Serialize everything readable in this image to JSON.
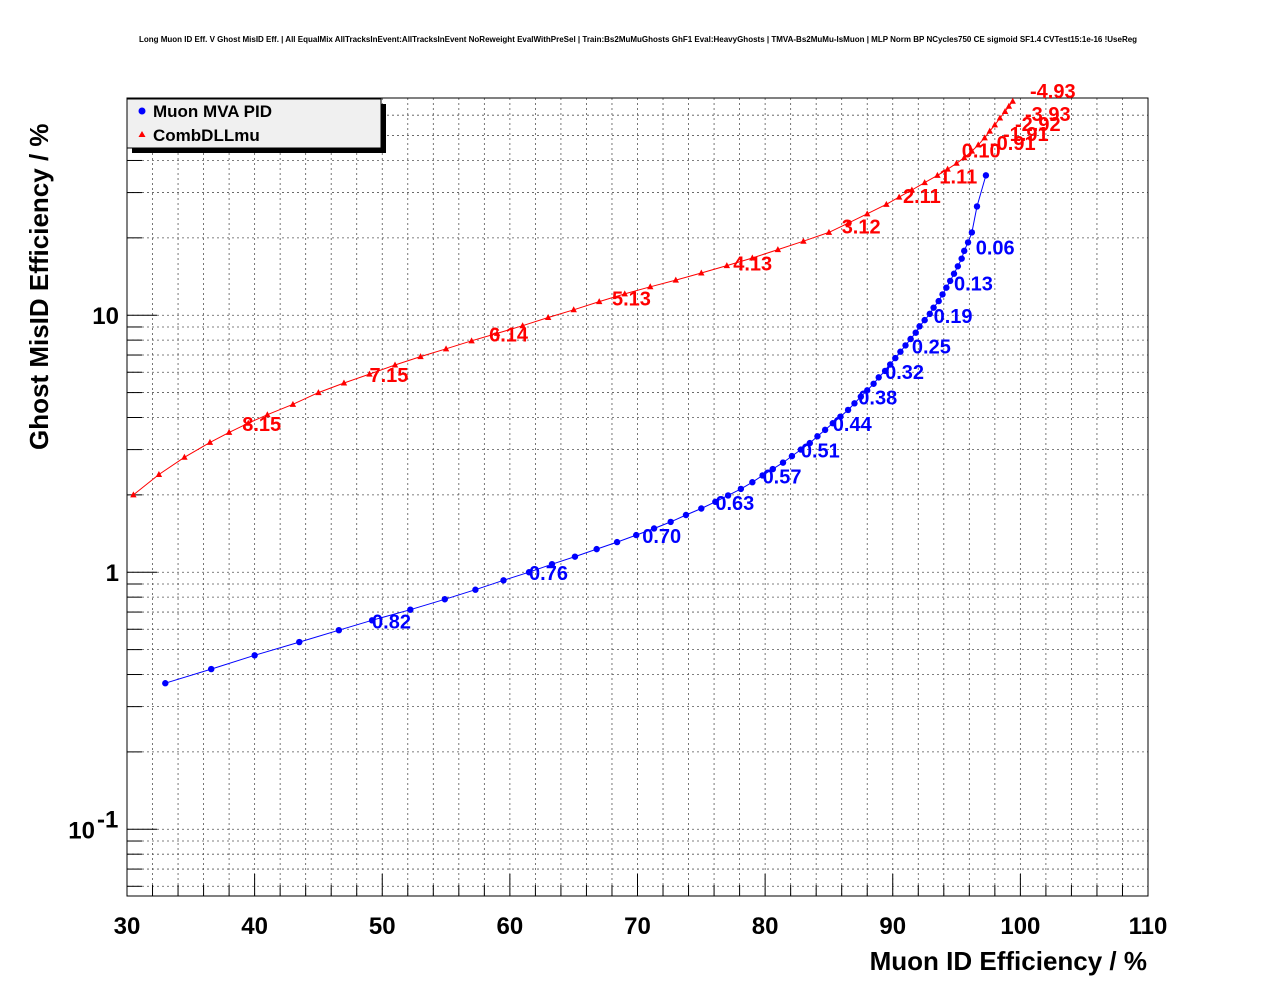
{
  "title": "Long Muon ID Eff. V Ghost MisID Eff. | All EqualMix AllTracksInEvent:AllTracksInEvent NoReweight EvalWithPreSel | Train:Bs2MuMuGhosts GhF1 Eval:HeavyGhosts | TMVA-Bs2MuMu-IsMuon | MLP Norm BP NCycles750 CE sigmoid SF1.4 CVTest15:1e-16 !UseReg",
  "chart_data": {
    "type": "scatter",
    "xlabel": "Muon ID Efficiency / %",
    "ylabel": "Ghost MisID Efficiency / %",
    "xlim": [
      30,
      110
    ],
    "ylim": [
      0.055,
      70
    ],
    "yscale": "log",
    "grid": true,
    "legend_position": "top-left",
    "x_ticks": [
      {
        "value": 30,
        "label": "30"
      },
      {
        "value": 40,
        "label": "40"
      },
      {
        "value": 50,
        "label": "50"
      },
      {
        "value": 60,
        "label": "60"
      },
      {
        "value": 70,
        "label": "70"
      },
      {
        "value": 80,
        "label": "80"
      },
      {
        "value": 90,
        "label": "90"
      },
      {
        "value": 100,
        "label": "100"
      },
      {
        "value": 110,
        "label": "110"
      }
    ],
    "y_ticks": [
      {
        "value": 0.1,
        "base": "10",
        "exp": "-1"
      },
      {
        "value": 1,
        "base": "1",
        "exp": ""
      },
      {
        "value": 10,
        "base": "10",
        "exp": ""
      }
    ],
    "series": [
      {
        "name": "Muon MVA PID",
        "color": "#0000ff",
        "marker": "circle",
        "x": [
          33.0,
          36.6,
          40.0,
          43.5,
          46.6,
          49.2,
          52.2,
          54.9,
          57.3,
          59.5,
          61.5,
          63.3,
          65.1,
          66.8,
          68.4,
          69.9,
          71.3,
          72.6,
          73.8,
          75.0,
          76.1,
          77.1,
          78.1,
          79.0,
          79.8,
          80.6,
          81.4,
          82.1,
          82.8,
          83.5,
          84.1,
          84.7,
          85.3,
          85.9,
          86.5,
          87.0,
          87.5,
          88.0,
          88.5,
          88.9,
          89.4,
          89.8,
          90.2,
          90.6,
          91.0,
          91.4,
          91.8,
          92.1,
          92.5,
          92.9,
          93.2,
          93.6,
          93.9,
          94.2,
          94.5,
          94.8,
          95.1,
          95.4,
          95.6,
          95.9,
          96.2,
          96.6,
          97.3
        ],
        "y": [
          0.37,
          0.42,
          0.475,
          0.535,
          0.595,
          0.65,
          0.715,
          0.785,
          0.855,
          0.93,
          1.0,
          1.075,
          1.15,
          1.23,
          1.31,
          1.395,
          1.48,
          1.57,
          1.67,
          1.77,
          1.88,
          1.99,
          2.11,
          2.24,
          2.38,
          2.52,
          2.67,
          2.83,
          3.0,
          3.18,
          3.38,
          3.58,
          3.8,
          4.03,
          4.28,
          4.54,
          4.82,
          5.1,
          5.41,
          5.73,
          6.07,
          6.43,
          6.81,
          7.21,
          7.63,
          8.08,
          8.55,
          9.05,
          9.57,
          10.12,
          10.7,
          11.35,
          12.05,
          12.8,
          13.6,
          14.5,
          15.5,
          16.6,
          17.8,
          19.2,
          21.0,
          26.5,
          35.0
        ],
        "labels": [
          {
            "x": 49.2,
            "y": 0.65,
            "text": "0.82"
          },
          {
            "x": 61.5,
            "y": 1.0,
            "text": "0.76"
          },
          {
            "x": 69.9,
            "y": 1.395,
            "text": "0.70"
          },
          {
            "x": 76.1,
            "y": 1.88,
            "text": "0.63"
          },
          {
            "x": 79.8,
            "y": 2.38,
            "text": "0.57"
          },
          {
            "x": 82.8,
            "y": 3.0,
            "text": "0.51"
          },
          {
            "x": 85.3,
            "y": 3.8,
            "text": "0.44"
          },
          {
            "x": 87.3,
            "y": 4.82,
            "text": "0.38"
          },
          {
            "x": 89.4,
            "y": 6.07,
            "text": "0.32"
          },
          {
            "x": 91.5,
            "y": 7.63,
            "text": "0.25"
          },
          {
            "x": 93.2,
            "y": 10.0,
            "text": "0.19"
          },
          {
            "x": 94.8,
            "y": 13.4,
            "text": "0.13"
          },
          {
            "x": 96.5,
            "y": 18.5,
            "text": "0.06"
          }
        ]
      },
      {
        "name": "CombDLLmu",
        "color": "#ff0000",
        "marker": "triangle",
        "x": [
          30.5,
          32.5,
          34.5,
          36.5,
          38.0,
          39.5,
          41.0,
          43.0,
          45.0,
          47.0,
          49.0,
          51.0,
          53.0,
          55.0,
          57.0,
          59.0,
          61.0,
          63.0,
          65.0,
          67.0,
          69.0,
          71.0,
          73.0,
          75.0,
          77.0,
          79.0,
          81.0,
          83.0,
          85.0,
          86.5,
          88.0,
          89.5,
          90.5,
          91.5,
          92.5,
          93.5,
          94.3,
          95.0,
          95.6,
          96.2,
          96.7,
          97.2,
          97.6,
          98.0,
          98.4,
          98.8,
          99.1,
          99.4
        ],
        "y": [
          2.0,
          2.4,
          2.8,
          3.2,
          3.5,
          3.8,
          4.1,
          4.5,
          5.0,
          5.45,
          5.9,
          6.4,
          6.9,
          7.4,
          7.95,
          8.5,
          9.1,
          9.8,
          10.5,
          11.3,
          12.1,
          12.9,
          13.7,
          14.6,
          15.6,
          16.7,
          18.0,
          19.4,
          21.0,
          22.8,
          24.8,
          27.0,
          28.8,
          30.7,
          32.8,
          35.0,
          37.0,
          39.0,
          41.0,
          43.5,
          46.0,
          49.0,
          52.0,
          55.0,
          58.5,
          62.0,
          65.0,
          68.0
        ],
        "labels": [
          {
            "x": 39.5,
            "y": 3.8,
            "text": "8.15"
          },
          {
            "x": 49.0,
            "y": 5.9,
            "text": "7.15"
          },
          {
            "x": 59.0,
            "y": 8.5,
            "text": "6.14"
          },
          {
            "x": 68.0,
            "y": 11.7,
            "text": "5.13"
          },
          {
            "x": 77.5,
            "y": 16.0,
            "text": "4.13"
          },
          {
            "x": 86.0,
            "y": 22.3,
            "text": "3.12"
          },
          {
            "x": 90.8,
            "y": 29.3,
            "text": "2.11"
          },
          {
            "x": 93.5,
            "y": 35.0,
            "text": "1.11"
          },
          {
            "x": 96.5,
            "y": 45.0,
            "text": "0.10"
          },
          {
            "x": 98.0,
            "y": 55.0,
            "text": "-0.91"
          },
          {
            "x": 98.8,
            "y": 62.0,
            "text": "-1.91"
          },
          {
            "x": 99.1,
            "y": 65.0,
            "text": "-2.92"
          },
          {
            "x": 99.4,
            "y": 68.0,
            "text": "-3.93"
          },
          {
            "x": 99.4,
            "y": 68.0,
            "text": "-4.93"
          }
        ]
      }
    ]
  }
}
